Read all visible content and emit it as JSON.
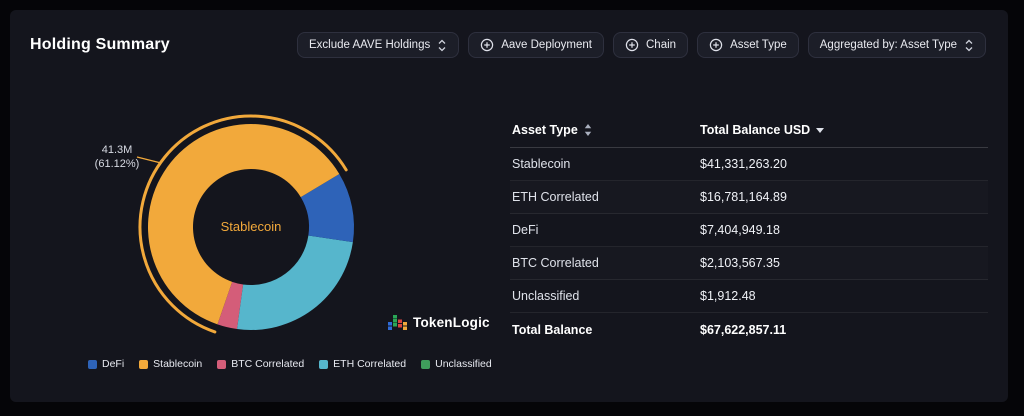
{
  "panel": {
    "title": "Holding Summary"
  },
  "toolbar": {
    "exclude": {
      "label": "Exclude AAVE Holdings"
    },
    "filters": [
      {
        "label": "Aave Deployment"
      },
      {
        "label": "Chain"
      },
      {
        "label": "Asset Type"
      }
    ],
    "aggregated": {
      "label": "Aggregated by: Asset Type"
    }
  },
  "chart_data": {
    "type": "pie",
    "subtype": "donut",
    "unit": "USD",
    "center_label": "Stablecoin",
    "annotation": {
      "value": "41.3M",
      "percent": "(61.12%)"
    },
    "start_angle_deg": 199,
    "slices": [
      {
        "name": "Stablecoin",
        "value": 41331263.2,
        "percent": 61.12,
        "color": "#f2a93b",
        "highlight": true
      },
      {
        "name": "DeFi",
        "value": 7404949.18,
        "percent": 10.95,
        "color": "#2e63b8",
        "highlight": false
      },
      {
        "name": "ETH Correlated",
        "value": 16781164.89,
        "percent": 24.82,
        "color": "#56b6cc",
        "highlight": false
      },
      {
        "name": "BTC Correlated",
        "value": 2103567.35,
        "percent": 3.11,
        "color": "#d45d79",
        "highlight": false
      },
      {
        "name": "Unclassified",
        "value": 1912.48,
        "percent": 0.003,
        "color": "#3f9e5c",
        "highlight": false
      }
    ],
    "legend_position": "bottom"
  },
  "legend": [
    {
      "label": "DeFi",
      "color": "#2e63b8"
    },
    {
      "label": "Stablecoin",
      "color": "#f2a93b"
    },
    {
      "label": "BTC Correlated",
      "color": "#d45d79"
    },
    {
      "label": "ETH Correlated",
      "color": "#56b6cc"
    },
    {
      "label": "Unclassified",
      "color": "#3f9e5c"
    }
  ],
  "logo": {
    "text": "TokenLogic"
  },
  "table": {
    "headers": {
      "asset_type": "Asset Type",
      "total_balance": "Total Balance USD"
    },
    "rows": [
      {
        "asset": "Stablecoin",
        "balance": "$41,331,263.20"
      },
      {
        "asset": "ETH Correlated",
        "balance": "$16,781,164.89"
      },
      {
        "asset": "DeFi",
        "balance": "$7,404,949.18"
      },
      {
        "asset": "BTC Correlated",
        "balance": "$2,103,567.35"
      },
      {
        "asset": "Unclassified",
        "balance": "$1,912.48"
      }
    ],
    "total": {
      "label": "Total Balance",
      "value": "$67,622,857.11"
    }
  },
  "colors": {
    "panel_bg": "#14151d",
    "page_bg": "#050508",
    "accent_orange": "#f2a93b"
  }
}
